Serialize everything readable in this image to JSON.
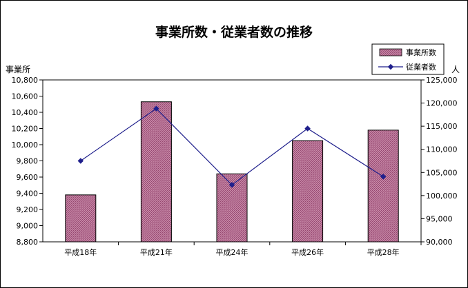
{
  "chart_data": {
    "type": "bar+line",
    "title": "事業所数・従業者数の推移",
    "categories": [
      "平成18年",
      "平成21年",
      "平成24年",
      "平成26年",
      "平成28年"
    ],
    "series": [
      {
        "name": "事業所数",
        "kind": "bar",
        "axis": "left",
        "values": [
          9380,
          10530,
          9640,
          10050,
          10180
        ],
        "color": "#c080a0"
      },
      {
        "name": "従業者数",
        "kind": "line",
        "axis": "right",
        "values": [
          107500,
          118800,
          102300,
          114500,
          104100
        ],
        "color": "#1f1f8c"
      }
    ],
    "ylabel_left": "事業所",
    "ylabel_right": "人",
    "ylim_left": [
      8800,
      10800
    ],
    "ylim_right": [
      90000,
      125000
    ],
    "yticks_left": [
      "8,800",
      "9,000",
      "9,200",
      "9,400",
      "9,600",
      "9,800",
      "10,000",
      "10,200",
      "10,400",
      "10,600",
      "10,800"
    ],
    "yticks_right": [
      "90,000",
      "95,000",
      "100,000",
      "105,000",
      "110,000",
      "115,000",
      "120,000",
      "125,000"
    ],
    "grid": false,
    "legend_position": "top-right"
  }
}
